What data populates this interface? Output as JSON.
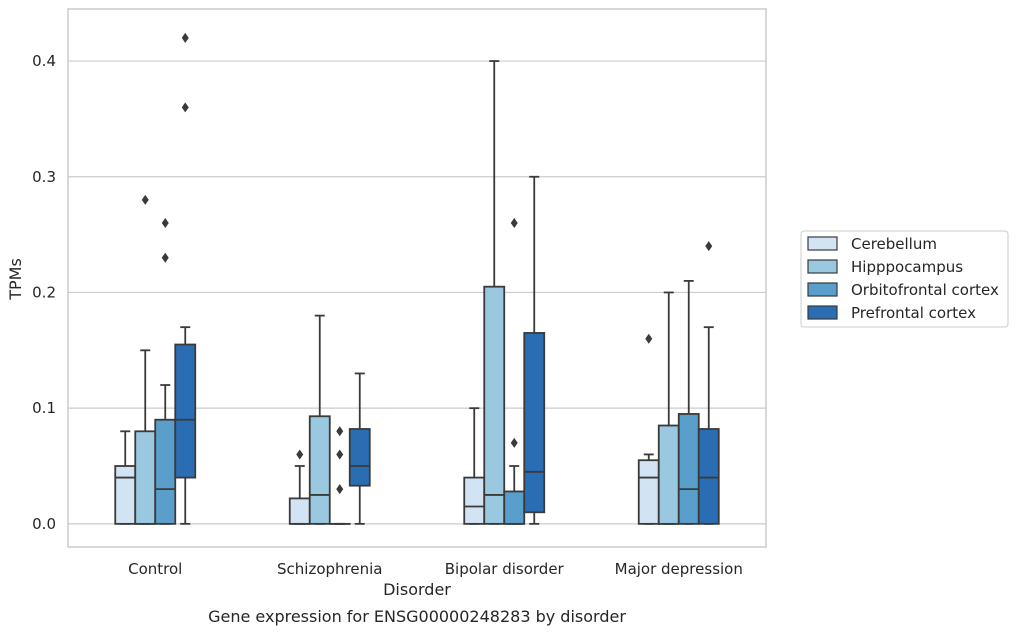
{
  "caption": "Gene expression for ENSG00000248283 by disorder",
  "chart_data": {
    "type": "boxplot",
    "xlabel": "Disorder",
    "ylabel": "TPMs",
    "ylim": [
      -0.02,
      0.445
    ],
    "yticks": [
      0.0,
      0.1,
      0.2,
      0.3,
      0.4
    ],
    "ytick_labels": [
      "0.0",
      "0.1",
      "0.2",
      "0.3",
      "0.4"
    ],
    "grid": "horizontal",
    "legend_position": "right",
    "categories": [
      "Control",
      "Schizophrenia",
      "Bipolar disorder",
      "Major depression"
    ],
    "series": [
      {
        "name": "Cerebellum",
        "color": "#d2e3f3",
        "boxes": [
          {
            "whislo": 0.0,
            "q1": 0.0,
            "med": 0.04,
            "q3": 0.05,
            "whishi": 0.08,
            "fliers": []
          },
          {
            "whislo": 0.0,
            "q1": 0.0,
            "med": 0.0,
            "q3": 0.022,
            "whishi": 0.05,
            "fliers": [
              0.06
            ]
          },
          {
            "whislo": 0.0,
            "q1": 0.0,
            "med": 0.015,
            "q3": 0.04,
            "whishi": 0.1,
            "fliers": []
          },
          {
            "whislo": 0.0,
            "q1": 0.0,
            "med": 0.04,
            "q3": 0.055,
            "whishi": 0.06,
            "fliers": [
              0.16
            ]
          }
        ]
      },
      {
        "name": "Hipppocampus",
        "color": "#9ac8e0",
        "boxes": [
          {
            "whislo": 0.0,
            "q1": 0.0,
            "med": 0.0,
            "q3": 0.08,
            "whishi": 0.15,
            "fliers": [
              0.28
            ]
          },
          {
            "whislo": 0.0,
            "q1": 0.0,
            "med": 0.025,
            "q3": 0.093,
            "whishi": 0.18,
            "fliers": []
          },
          {
            "whislo": 0.0,
            "q1": 0.0,
            "med": 0.025,
            "q3": 0.205,
            "whishi": 0.4,
            "fliers": []
          },
          {
            "whislo": 0.0,
            "q1": 0.0,
            "med": 0.0,
            "q3": 0.085,
            "whishi": 0.2,
            "fliers": []
          }
        ]
      },
      {
        "name": "Orbitofrontal cortex",
        "color": "#5a9fcc",
        "boxes": [
          {
            "whislo": 0.0,
            "q1": 0.0,
            "med": 0.03,
            "q3": 0.09,
            "whishi": 0.12,
            "fliers": [
              0.23,
              0.26
            ]
          },
          {
            "whislo": 0.0,
            "q1": 0.0,
            "med": 0.0,
            "q3": 0.0,
            "whishi": 0.0,
            "fliers": [
              0.03,
              0.06,
              0.08
            ]
          },
          {
            "whislo": 0.0,
            "q1": 0.0,
            "med": 0.0,
            "q3": 0.028,
            "whishi": 0.05,
            "fliers": [
              0.07,
              0.26
            ]
          },
          {
            "whislo": 0.0,
            "q1": 0.0,
            "med": 0.03,
            "q3": 0.095,
            "whishi": 0.21,
            "fliers": []
          }
        ]
      },
      {
        "name": "Prefrontal cortex",
        "color": "#2a6db2",
        "boxes": [
          {
            "whislo": 0.0,
            "q1": 0.04,
            "med": 0.09,
            "q3": 0.155,
            "whishi": 0.17,
            "fliers": [
              0.36,
              0.42
            ]
          },
          {
            "whislo": 0.0,
            "q1": 0.033,
            "med": 0.05,
            "q3": 0.082,
            "whishi": 0.13,
            "fliers": []
          },
          {
            "whislo": 0.0,
            "q1": 0.01,
            "med": 0.045,
            "q3": 0.165,
            "whishi": 0.3,
            "fliers": []
          },
          {
            "whislo": 0.0,
            "q1": 0.0,
            "med": 0.04,
            "q3": 0.082,
            "whishi": 0.17,
            "fliers": [
              0.24
            ]
          }
        ]
      }
    ]
  }
}
